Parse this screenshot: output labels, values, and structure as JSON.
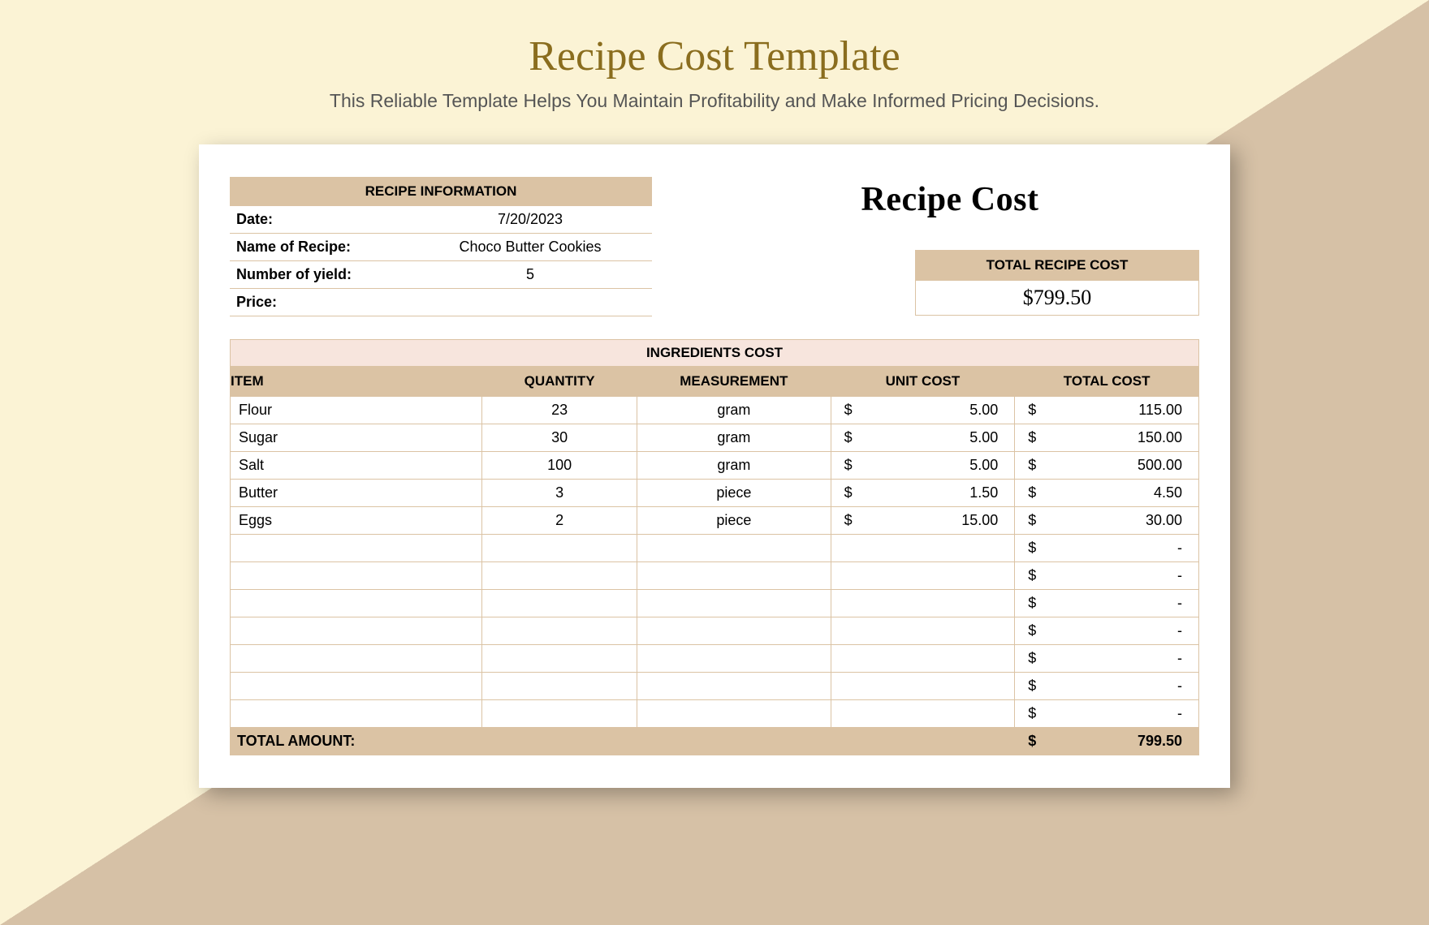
{
  "page": {
    "title": "Recipe Cost Template",
    "subtitle": "This Reliable Template Helps You Maintain Profitability and Make Informed Pricing Decisions."
  },
  "colors": {
    "background": "#fbf3d5",
    "triangle": "#d6c1a6",
    "accent": "#dbc3a4",
    "ingredients_header_bg": "#f7e5dd",
    "title_color": "#8a6d1e",
    "sheet_bg": "#ffffff"
  },
  "recipe_info": {
    "header": "RECIPE INFORMATION",
    "fields": [
      {
        "label": "Date:",
        "value": "7/20/2023"
      },
      {
        "label": "Name of Recipe:",
        "value": "Choco Butter Cookies"
      },
      {
        "label": "Number of yield:",
        "value": "5"
      },
      {
        "label": "Price:",
        "value": ""
      }
    ]
  },
  "recipe_cost_title": "Recipe Cost",
  "total_recipe_cost": {
    "label": "TOTAL RECIPE COST",
    "value": "$799.50"
  },
  "ingredients": {
    "header": "INGREDIENTS COST",
    "columns": [
      "ITEM",
      "QUANTITY",
      "MEASUREMENT",
      "UNIT COST",
      "TOTAL COST"
    ],
    "rows": [
      {
        "item": "Flour",
        "qty": "23",
        "meas": "gram",
        "unit": "5.00",
        "total": "115.00"
      },
      {
        "item": "Sugar",
        "qty": "30",
        "meas": "gram",
        "unit": "5.00",
        "total": "150.00"
      },
      {
        "item": "Salt",
        "qty": "100",
        "meas": "gram",
        "unit": "5.00",
        "total": "500.00"
      },
      {
        "item": "Butter",
        "qty": "3",
        "meas": "piece",
        "unit": "1.50",
        "total": "4.50"
      },
      {
        "item": "Eggs",
        "qty": "2",
        "meas": "piece",
        "unit": "15.00",
        "total": "30.00"
      },
      {
        "item": "",
        "qty": "",
        "meas": "",
        "unit": "",
        "total": "-"
      },
      {
        "item": "",
        "qty": "",
        "meas": "",
        "unit": "",
        "total": "-"
      },
      {
        "item": "",
        "qty": "",
        "meas": "",
        "unit": "",
        "total": "-"
      },
      {
        "item": "",
        "qty": "",
        "meas": "",
        "unit": "",
        "total": "-"
      },
      {
        "item": "",
        "qty": "",
        "meas": "",
        "unit": "",
        "total": "-"
      },
      {
        "item": "",
        "qty": "",
        "meas": "",
        "unit": "",
        "total": "-"
      },
      {
        "item": "",
        "qty": "",
        "meas": "",
        "unit": "",
        "total": "-"
      }
    ],
    "total_label": "TOTAL AMOUNT:",
    "total_amount": "799.50"
  },
  "currency": "$"
}
